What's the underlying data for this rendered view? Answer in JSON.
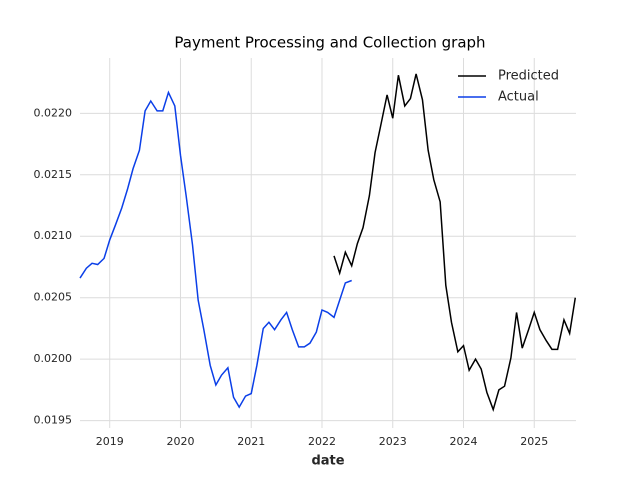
{
  "chart_data": {
    "type": "line",
    "title": "Payment Processing and Collection graph",
    "xlabel": "date",
    "xlim": [
      2018.58,
      2025.59
    ],
    "xticks": [
      2019,
      2020,
      2021,
      2022,
      2023,
      2024,
      2025
    ],
    "ylim": [
      0.01944,
      0.02245
    ],
    "yticks": [
      0.0195,
      {
        "value": 0.02,
        "label": "0.0200"
      },
      0.0205,
      {
        "value": 0.021,
        "label": "0.0210"
      },
      0.0215,
      {
        "value": 0.022,
        "label": "0.0220"
      }
    ],
    "grid": true,
    "legend": "upper right",
    "series": [
      {
        "name": "Predicted",
        "color": "#000000",
        "x": [
          2022.17,
          2022.25,
          2022.33,
          2022.42,
          2022.5,
          2022.58,
          2022.67,
          2022.75,
          2022.83,
          2022.92,
          2023.0,
          2023.08,
          2023.17,
          2023.25,
          2023.33,
          2023.42,
          2023.5,
          2023.58,
          2023.67,
          2023.75,
          2023.83,
          2023.92,
          2024.0,
          2024.08,
          2024.17,
          2024.25,
          2024.33,
          2024.42,
          2024.5,
          2024.58,
          2024.67,
          2024.75,
          2024.83,
          2024.92,
          2025.0,
          2025.08,
          2025.17,
          2025.25,
          2025.33,
          2025.42,
          2025.5,
          2025.58
        ],
        "values": [
          0.02084,
          0.0207,
          0.02087,
          0.02076,
          0.02094,
          0.02107,
          0.02133,
          0.02168,
          0.0219,
          0.02215,
          0.02196,
          0.02231,
          0.02206,
          0.02212,
          0.02232,
          0.02211,
          0.0217,
          0.02146,
          0.02128,
          0.0206,
          0.0203,
          0.02006,
          0.02011,
          0.01991,
          0.02,
          0.01992,
          0.01973,
          0.01959,
          0.01975,
          0.01978,
          0.02001,
          0.02038,
          0.02009,
          0.02024,
          0.02038,
          0.02024,
          0.02015,
          0.02008,
          0.02008,
          0.02032,
          0.02021,
          0.0205
        ]
      },
      {
        "name": "Actual",
        "color": "#0b3fe8",
        "x": [
          2018.58,
          2018.67,
          2018.75,
          2018.83,
          2018.92,
          2019.0,
          2019.08,
          2019.17,
          2019.25,
          2019.33,
          2019.42,
          2019.5,
          2019.58,
          2019.67,
          2019.75,
          2019.83,
          2019.92,
          2020.0,
          2020.08,
          2020.17,
          2020.25,
          2020.33,
          2020.42,
          2020.5,
          2020.58,
          2020.67,
          2020.75,
          2020.83,
          2020.92,
          2021.0,
          2021.08,
          2021.17,
          2021.25,
          2021.33,
          2021.42,
          2021.5,
          2021.58,
          2021.67,
          2021.75,
          2021.83,
          2021.92,
          2022.0,
          2022.08,
          2022.17,
          2022.25,
          2022.33,
          2022.42
        ],
        "values": [
          0.02066,
          0.02074,
          0.02078,
          0.02077,
          0.02082,
          0.02097,
          0.02109,
          0.02123,
          0.02138,
          0.02155,
          0.0217,
          0.02202,
          0.0221,
          0.02202,
          0.02202,
          0.02217,
          0.02206,
          0.02166,
          0.02133,
          0.02093,
          0.02048,
          0.02024,
          0.01995,
          0.01979,
          0.01987,
          0.01993,
          0.01969,
          0.01961,
          0.0197,
          0.01972,
          0.01995,
          0.02025,
          0.0203,
          0.02024,
          0.02032,
          0.02038,
          0.02024,
          0.0201,
          0.0201,
          0.02013,
          0.02022,
          0.0204,
          0.02038,
          0.02034,
          0.02048,
          0.02062,
          0.02064
        ]
      }
    ]
  }
}
